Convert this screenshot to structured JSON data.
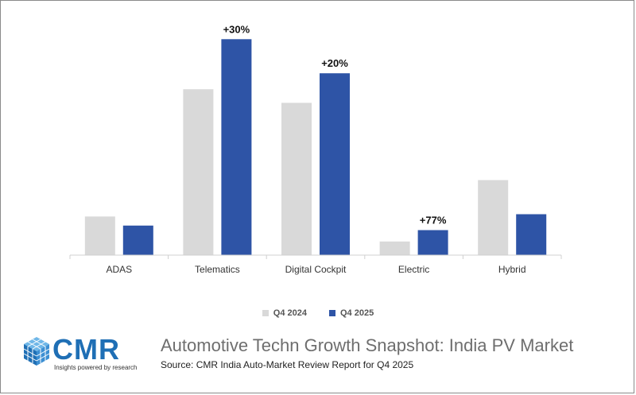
{
  "chart_data": {
    "type": "bar",
    "title": "Automotive Techn Growth Snapshot: India PV Market",
    "subtitle": "Source: CMR India Auto-Market Review Report for Q4 2025",
    "categories": [
      "ADAS",
      "Telematics",
      "Digital Cockpit",
      "Electric",
      "Hybrid"
    ],
    "series": [
      {
        "name": "Q4 2024",
        "color": "#d9d9d9",
        "values": [
          17,
          73,
          67,
          6,
          33
        ]
      },
      {
        "name": "Q4 2025",
        "color": "#2e54a6",
        "values": [
          13,
          95,
          80,
          11,
          18
        ]
      }
    ],
    "annotations": [
      {
        "category": "Telematics",
        "series": "Q4 2025",
        "text": "+30%"
      },
      {
        "category": "Digital Cockpit",
        "series": "Q4 2025",
        "text": "+20%"
      },
      {
        "category": "Electric",
        "series": "Q4 2025",
        "text": "+77%"
      }
    ],
    "ylim": [
      0,
      100
    ],
    "grid": false,
    "legend_position": "bottom-center"
  },
  "brand": {
    "logo_text": "CMR",
    "tagline": "Insights powered by research",
    "accent_color": "#1f6fb5"
  }
}
